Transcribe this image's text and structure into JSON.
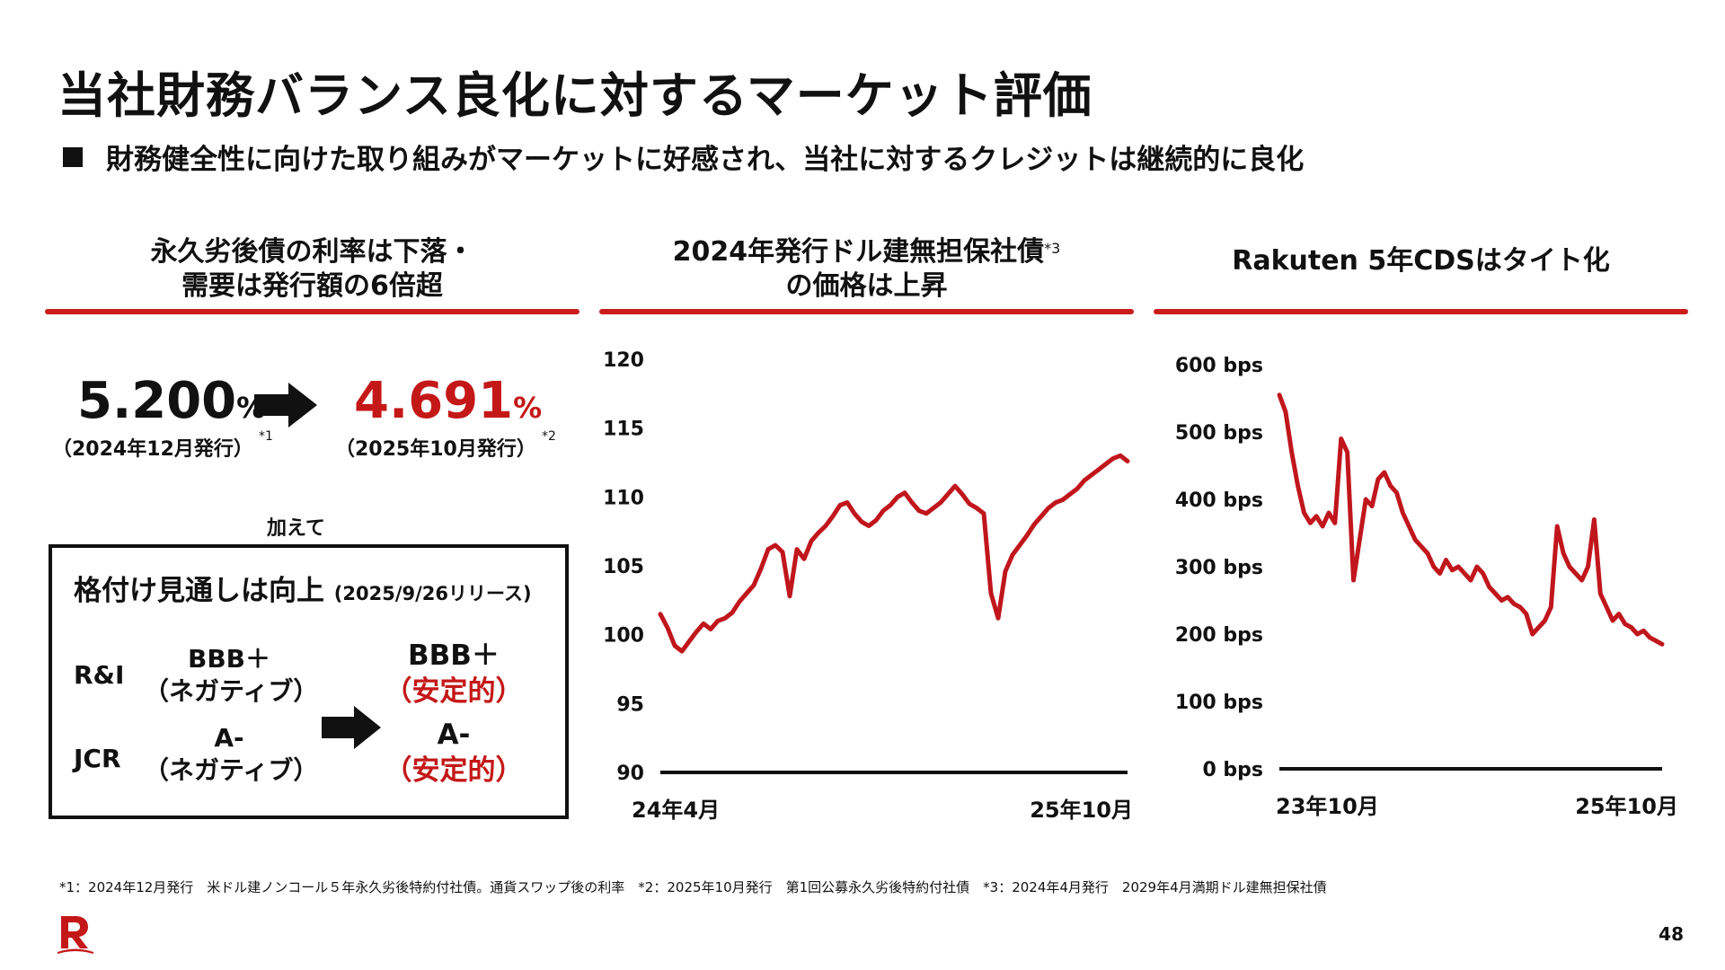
{
  "title": "当社財務バランス良化に対するマーケット評価",
  "subtitle": "財務健全性に向けた取り組みがマーケットに好感され、当社に対するクレジットは継続的に良化",
  "col1": {
    "heading_line1": "永久劣後債の利率は下落・",
    "heading_line2": "需要は発行額の6倍超",
    "old_rate": "5.200",
    "old_pct": "%",
    "old_date": "（2024年12月発行）",
    "old_note": "*1",
    "new_rate": "4.691",
    "new_pct": "%",
    "new_date": "（2025年10月発行）",
    "new_note": "*2",
    "also": "加えて"
  },
  "ratings_box": {
    "title": "格付け見通しは向上",
    "release": "(2025/9/26リリース)",
    "rows": [
      {
        "agency": "R&I",
        "old_grade": "BBB＋",
        "old_outlook": "（ネガティブ）",
        "new_grade": "BBB＋",
        "new_outlook": "（安定的）"
      },
      {
        "agency": "JCR",
        "old_grade": "A-",
        "old_outlook": "（ネガティブ）",
        "new_grade": "A-",
        "new_outlook": "（安定的）"
      }
    ]
  },
  "col2": {
    "heading_line1": "2024年発行ドル建無担保社債",
    "heading_note": "*3",
    "heading_line2": "の価格は上昇"
  },
  "col3": {
    "heading": "Rakuten 5年CDSはタイト化"
  },
  "chart_data": [
    {
      "type": "line",
      "title": "2024年発行ドル建無担保社債の価格",
      "x_start_label": "24年4月",
      "x_end_label": "25年10月",
      "ylim": [
        90,
        120
      ],
      "y_ticks": [
        "120",
        "115",
        "110",
        "105",
        "100",
        "95",
        "90"
      ],
      "color": "#c0161c",
      "values": [
        101.5,
        100.5,
        99.2,
        98.8,
        99.5,
        100.2,
        100.8,
        100.4,
        101.0,
        101.2,
        101.6,
        102.4,
        103.0,
        103.6,
        104.8,
        106.2,
        106.5,
        106.0,
        102.8,
        106.2,
        105.5,
        106.8,
        107.4,
        107.9,
        108.6,
        109.4,
        109.6,
        108.8,
        108.2,
        107.9,
        108.3,
        109.0,
        109.4,
        110.0,
        110.3,
        109.6,
        109.0,
        108.8,
        109.2,
        109.6,
        110.2,
        110.8,
        110.2,
        109.5,
        109.2,
        108.8,
        103.0,
        101.2,
        104.6,
        105.8,
        106.5,
        107.2,
        108.0,
        108.6,
        109.2,
        109.6,
        109.8,
        110.2,
        110.6,
        111.2,
        111.6,
        112.0,
        112.4,
        112.8,
        113.0,
        112.6
      ]
    },
    {
      "type": "line",
      "title": "Rakuten 5年CDS",
      "x_start_label": "23年10月",
      "x_end_label": "25年10月",
      "ylim": [
        0,
        600
      ],
      "y_ticks": [
        "600 bps",
        "500 bps",
        "400 bps",
        "300 bps",
        "200 bps",
        "100 bps",
        "0 bps"
      ],
      "color": "#c0161c",
      "values": [
        555,
        530,
        470,
        420,
        380,
        365,
        375,
        360,
        380,
        365,
        490,
        470,
        280,
        340,
        400,
        390,
        430,
        440,
        420,
        410,
        380,
        360,
        340,
        330,
        320,
        300,
        290,
        310,
        295,
        300,
        290,
        280,
        300,
        290,
        270,
        260,
        250,
        255,
        245,
        240,
        230,
        200,
        210,
        220,
        240,
        360,
        320,
        300,
        290,
        280,
        300,
        370,
        260,
        240,
        220,
        230,
        215,
        210,
        200,
        205,
        195,
        190,
        185
      ]
    }
  ],
  "footnote": "*1：2024年12月発行　米ドル建ノンコール５年永久劣後特約付社債。通貨スワップ後の利率　*2：2025年10月発行　第1回公募永久劣後特約付社債　*3：2024年4月発行　2029年4月満期ドル建無担保社債",
  "page_number": "48"
}
